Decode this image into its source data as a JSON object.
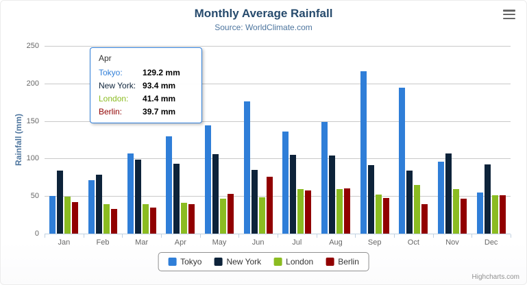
{
  "chart": {
    "title": "Monthly Average Rainfall",
    "subtitle": "Source: WorldClimate.com",
    "credits": "Highcharts.com"
  },
  "chart_data": {
    "type": "bar",
    "title": "Monthly Average Rainfall",
    "subtitle": "Source: WorldClimate.com",
    "xlabel": "",
    "ylabel": "Rainfall (mm)",
    "ylim": [
      0,
      250
    ],
    "y_ticks": [
      0,
      50,
      100,
      150,
      200,
      250
    ],
    "grid": true,
    "legend_position": "bottom",
    "categories": [
      "Jan",
      "Feb",
      "Mar",
      "Apr",
      "May",
      "Jun",
      "Jul",
      "Aug",
      "Sep",
      "Oct",
      "Nov",
      "Dec"
    ],
    "series": [
      {
        "name": "Tokyo",
        "color": "#2f7ed8",
        "values": [
          49.9,
          71.5,
          106.4,
          129.2,
          144.0,
          176.0,
          135.6,
          148.5,
          216.4,
          194.1,
          95.6,
          54.4
        ]
      },
      {
        "name": "New York",
        "color": "#0d233a",
        "values": [
          83.6,
          78.8,
          98.5,
          93.4,
          106.0,
          84.5,
          105.0,
          104.3,
          91.2,
          83.5,
          106.6,
          92.3
        ]
      },
      {
        "name": "London",
        "color": "#8bbc21",
        "values": [
          48.9,
          38.8,
          39.3,
          41.4,
          47.0,
          48.3,
          59.0,
          59.6,
          52.4,
          65.2,
          59.3,
          51.2
        ]
      },
      {
        "name": "Berlin",
        "color": "#910000",
        "values": [
          42.4,
          33.2,
          34.5,
          39.7,
          52.6,
          75.5,
          57.4,
          60.4,
          47.6,
          39.1,
          46.8,
          51.1
        ]
      }
    ]
  },
  "tooltip": {
    "header": "Apr",
    "rows": [
      {
        "name": "Tokyo:",
        "value": "129.2 mm",
        "color": "#2f7ed8"
      },
      {
        "name": "New York:",
        "value": "93.4 mm",
        "color": "#0d233a"
      },
      {
        "name": "London:",
        "value": "41.4 mm",
        "color": "#8bbc21"
      },
      {
        "name": "Berlin:",
        "value": "39.7 mm",
        "color": "#910000"
      }
    ]
  },
  "legend": {
    "items": [
      {
        "label": "Tokyo",
        "color": "#2f7ed8"
      },
      {
        "label": "New York",
        "color": "#0d233a"
      },
      {
        "label": "London",
        "color": "#8bbc21"
      },
      {
        "label": "Berlin",
        "color": "#910000"
      }
    ]
  }
}
